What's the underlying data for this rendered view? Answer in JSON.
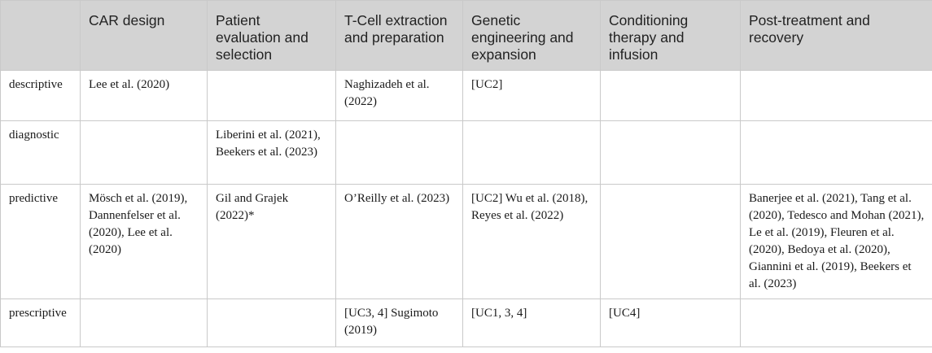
{
  "table": {
    "headers": [
      "",
      "CAR design",
      "Patient evaluation and selection",
      "T-Cell extraction and preparation",
      "Genetic engineering and expansion",
      "Conditioning therapy and infusion",
      "Post-treatment and recovery"
    ],
    "rows": [
      {
        "label": "descriptive",
        "cells": [
          "Lee et al. (2020)",
          "",
          "Naghizadeh et al. (2022)",
          "[UC2]",
          "",
          ""
        ]
      },
      {
        "label": "diagnostic",
        "cells": [
          "",
          "Liberini et al. (2021), Beekers et al. (2023)",
          "",
          "",
          "",
          ""
        ]
      },
      {
        "label": "predictive",
        "cells": [
          "Mösch et al. (2019), Dannenfelser et al. (2020), Lee et al. (2020)",
          "Gil and Grajek (2022)*",
          "O’Reilly et al. (2023)",
          "[UC2] Wu et al. (2018), Reyes et al. (2022)",
          "",
          "Banerjee et al. (2021), Tang et al. (2020), Tedesco and Mohan (2021), Le et al. (2019), Fleuren et al. (2020), Bedoya et al. (2020), Giannini et al. (2019), Beekers et al. (2023)"
        ]
      },
      {
        "label": "prescriptive",
        "cells": [
          "",
          "",
          "[UC3, 4] Sugimoto (2019)",
          "[UC1, 3, 4]",
          "[UC4]",
          ""
        ]
      }
    ]
  }
}
